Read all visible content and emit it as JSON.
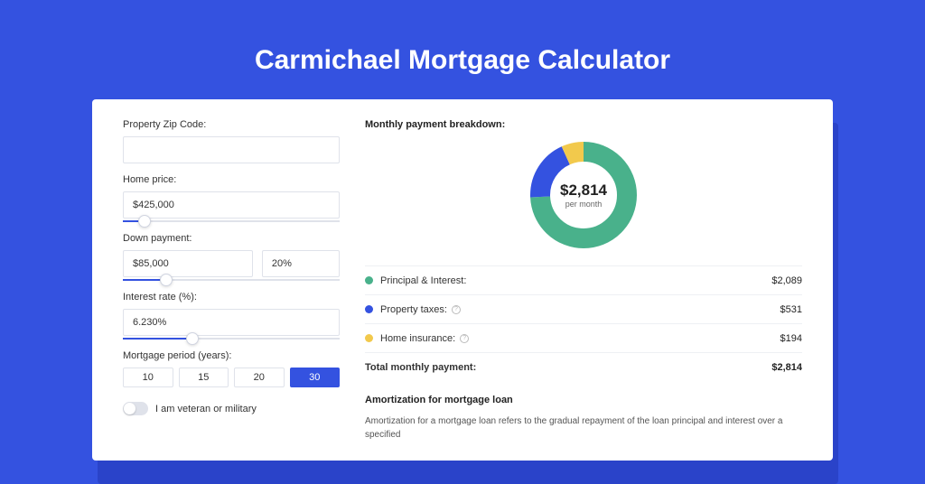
{
  "title": "Carmichael Mortgage Calculator",
  "colors": {
    "page_bg": "#3452e0",
    "panel_bg": "#ffffff",
    "border": "#dfe2ea",
    "text": "#333333",
    "accent": "#3452e0"
  },
  "form": {
    "zip": {
      "label": "Property Zip Code:",
      "value": ""
    },
    "price": {
      "label": "Home price:",
      "value": "$425,000",
      "slider_pct": 10
    },
    "down": {
      "label": "Down payment:",
      "value": "$85,000",
      "pct": "20%",
      "slider_pct": 20
    },
    "rate": {
      "label": "Interest rate (%):",
      "value": "6.230%",
      "slider_pct": 32
    },
    "period": {
      "label": "Mortgage period (years):",
      "options": [
        "10",
        "15",
        "20",
        "30"
      ],
      "selected": "30"
    },
    "veteran": {
      "label": "I am veteran or military",
      "checked": false
    }
  },
  "breakdown": {
    "title": "Monthly payment breakdown:",
    "center_value": "$2,814",
    "center_sub": "per month",
    "chart": {
      "type": "donut",
      "radius": 48,
      "stroke": 22,
      "segments": [
        {
          "label": "Principal & Interest:",
          "value": 2089,
          "value_text": "$2,089",
          "color": "#49b18b",
          "pct": 74.2
        },
        {
          "label": "Property taxes:",
          "value": 531,
          "value_text": "$531",
          "color": "#3452e0",
          "pct": 18.9,
          "info": true
        },
        {
          "label": "Home insurance:",
          "value": 194,
          "value_text": "$194",
          "color": "#f2c94c",
          "pct": 6.9,
          "info": true
        }
      ]
    },
    "total": {
      "label": "Total monthly payment:",
      "value": "$2,814"
    }
  },
  "amort": {
    "title": "Amortization for mortgage loan",
    "text": "Amortization for a mortgage loan refers to the gradual repayment of the loan principal and interest over a specified"
  }
}
